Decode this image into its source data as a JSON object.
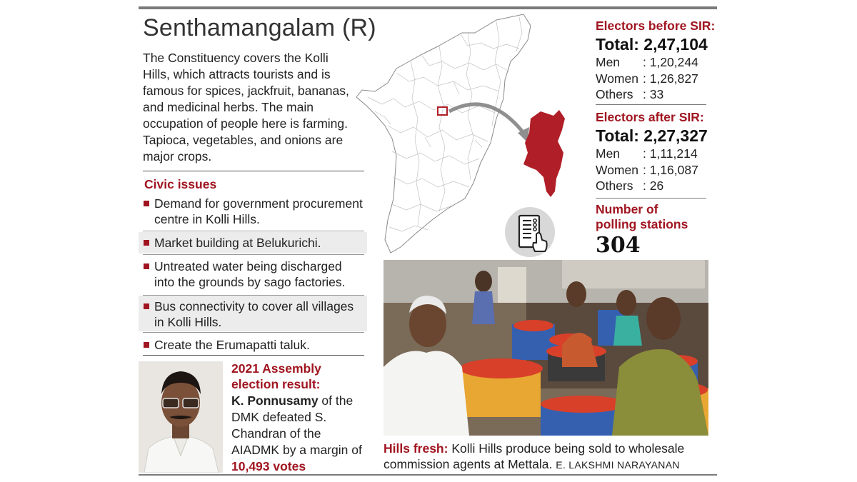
{
  "title": "Senthamangalam (R)",
  "intro": "The Constituency covers the Kolli Hills, which attracts tourists and is famous for spices, jackfruit, bananas, and medicinal herbs. The main occupation of people here is farming. Tapioca, vegetables, and onions are major crops.",
  "civic": {
    "heading": "Civic issues",
    "items": [
      "Demand for government procurement centre in Kolli Hills.",
      "Market building at Belukurichi.",
      "Untreated water being discharged into the grounds by sago factories.",
      "Bus connectivity to cover all villages in Kolli Hills.",
      "Create the Erumapatti taluk."
    ]
  },
  "result": {
    "heading": "2021 Assembly election result:",
    "winner": "K. Ponnusamy",
    "text1": " of the DMK defeated S. Chandran of the AIADMK by a margin of ",
    "margin": "10,493 votes"
  },
  "before": {
    "heading": "Electors before SIR:",
    "total": "Total: 2,47,104",
    "rows": [
      {
        "k": "Men",
        "v": ": 1,20,244"
      },
      {
        "k": "Women",
        "v": ": 1,26,827"
      },
      {
        "k": "Others",
        "v": ": 33"
      }
    ]
  },
  "after": {
    "heading": "Electors after SIR:",
    "total": "Total: 2,27,327",
    "rows": [
      {
        "k": "Men",
        "v": ": 1,11,214"
      },
      {
        "k": "Women",
        "v": ": 1,16,087"
      },
      {
        "k": "Others",
        "v": ": 26"
      }
    ]
  },
  "polling": {
    "heading1": "Number of",
    "heading2": "polling stations",
    "count": "304"
  },
  "caption": {
    "lead": "Hills fresh:",
    "text": " Kolli Hills produce being sold to wholesale commission agents at Mettala. ",
    "credit": "E. LAKSHMI NARAYANAN"
  },
  "colors": {
    "accent": "#a01520",
    "map_fill": "#b01e27",
    "rule": "#7a7a7a"
  },
  "icons": [
    "evm-hand-icon",
    "bullet-square-icon",
    "arrow-icon"
  ]
}
